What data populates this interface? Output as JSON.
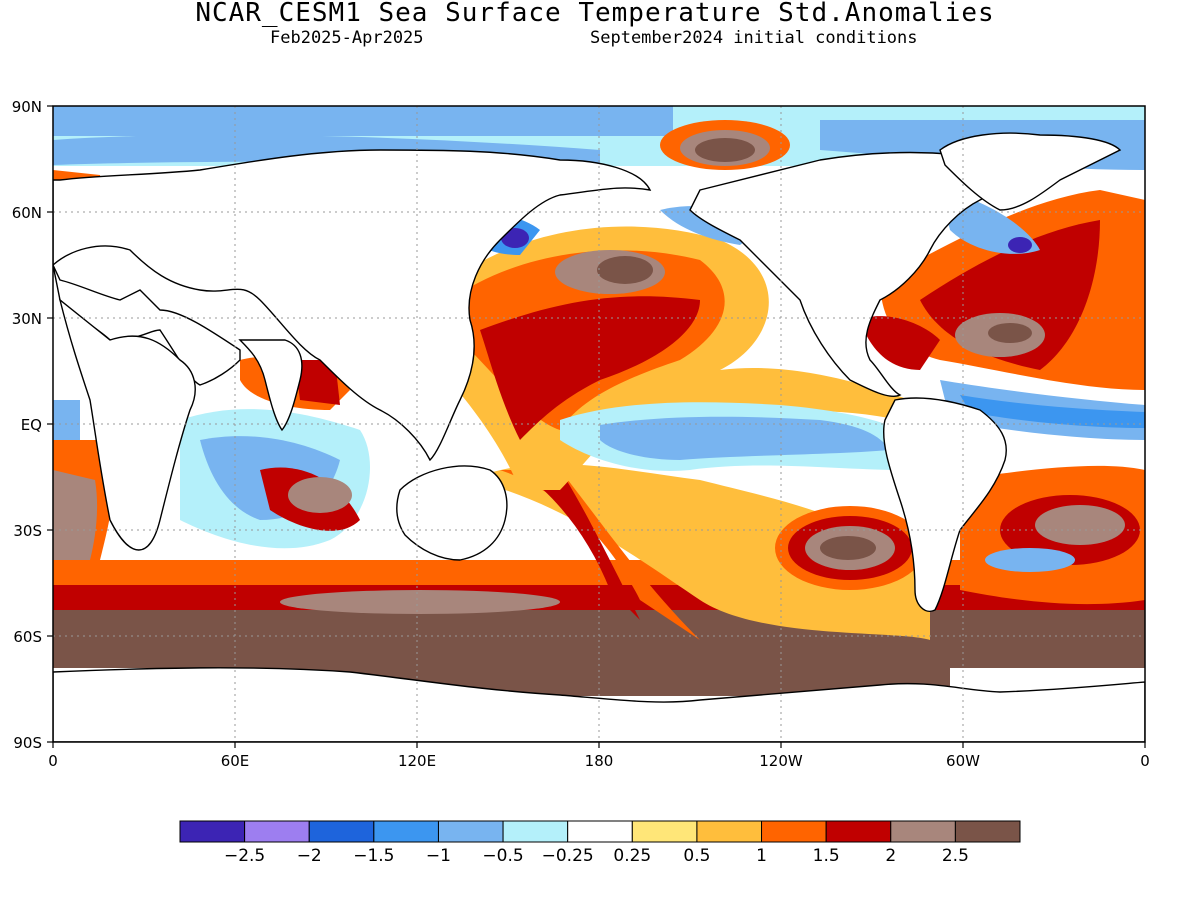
{
  "header": {
    "title": "NCAR_CESM1 Sea Surface Temperature Std.Anomalies",
    "period": "Feb2025-Apr2025",
    "init": "September2024 initial conditions"
  },
  "axes": {
    "lat_ticks": [
      "90N",
      "60N",
      "30N",
      "EQ",
      "30S",
      "60S",
      "90S"
    ],
    "lon_ticks": [
      "0",
      "60E",
      "120E",
      "180",
      "120W",
      "60W",
      "0"
    ]
  },
  "colorbar": {
    "colors": [
      "#3c24b4",
      "#9d7ef0",
      "#1e64dc",
      "#3c96f0",
      "#78b4f0",
      "#b4f0fa",
      "#ffffff",
      "#ffe678",
      "#ffbe3c",
      "#ff6400",
      "#c00000",
      "#a8867c",
      "#7a5448"
    ],
    "labels": [
      "-2.5",
      "-2",
      "-1.5",
      "-1",
      "-0.5",
      "-0.25",
      "0.25",
      "0.5",
      "1",
      "1.5",
      "2",
      "2.5"
    ]
  }
}
